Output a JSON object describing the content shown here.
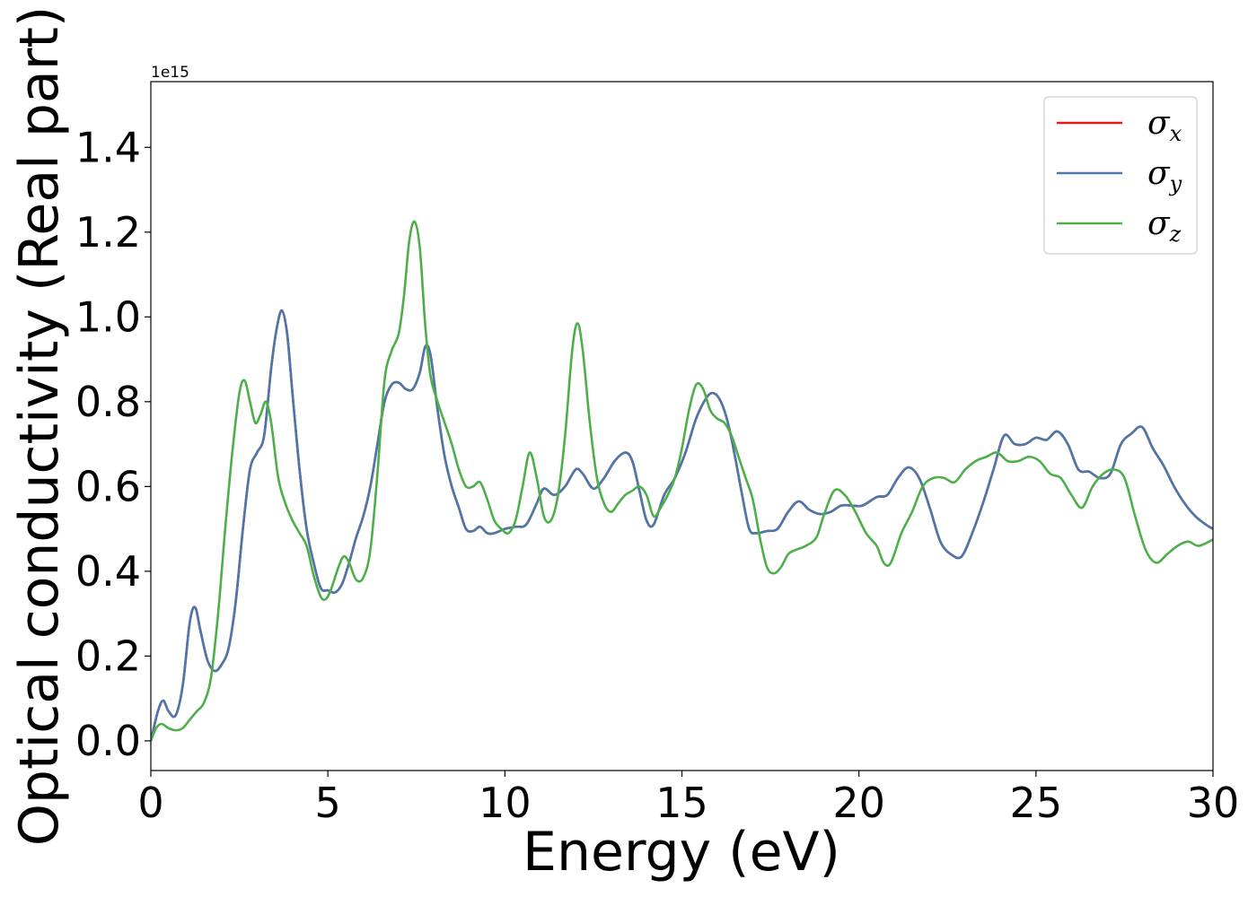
{
  "chart_data": {
    "type": "line",
    "xlabel": "Energy (eV)",
    "ylabel": "Optical conductivity (Real part)",
    "y_offset_label": "1e15",
    "xlim": [
      0,
      30
    ],
    "ylim": [
      -0.07,
      1.555
    ],
    "xticks": [
      0,
      5,
      10,
      15,
      20,
      25,
      30
    ],
    "xtick_labels": [
      "0",
      "5",
      "10",
      "15",
      "20",
      "25",
      "30"
    ],
    "yticks": [
      0.0,
      0.2,
      0.4,
      0.6,
      0.8,
      1.0,
      1.2,
      1.4
    ],
    "ytick_labels": [
      "0.0",
      "0.2",
      "0.4",
      "0.6",
      "0.8",
      "1.0",
      "1.2",
      "1.4"
    ],
    "grid": false,
    "legend_position": "top-right",
    "series": [
      {
        "name": "σx",
        "symbol": "σ",
        "sub": "x",
        "color": "#e41a1c",
        "x": [
          0,
          0.2,
          0.35,
          0.5,
          0.7,
          0.9,
          1.1,
          1.25,
          1.4,
          1.6,
          1.8,
          2.0,
          2.2,
          2.4,
          2.6,
          2.8,
          3.0,
          3.2,
          3.4,
          3.55,
          3.7,
          3.85,
          4.0,
          4.2,
          4.4,
          4.6,
          4.8,
          5.0,
          5.2,
          5.4,
          5.6,
          5.8,
          6.0,
          6.2,
          6.4,
          6.6,
          6.8,
          7.0,
          7.2,
          7.4,
          7.6,
          7.75,
          7.9,
          8.1,
          8.3,
          8.5,
          8.7,
          8.9,
          9.1,
          9.3,
          9.5,
          9.7,
          10.0,
          10.3,
          10.6,
          10.9,
          11.1,
          11.4,
          11.7,
          12.0,
          12.2,
          12.5,
          12.8,
          13.1,
          13.4,
          13.6,
          13.8,
          14.0,
          14.2,
          14.5,
          14.8,
          15.1,
          15.4,
          15.7,
          15.9,
          16.1,
          16.3,
          16.5,
          16.7,
          16.9,
          17.1,
          17.4,
          17.7,
          18.0,
          18.3,
          18.6,
          18.9,
          19.2,
          19.5,
          19.8,
          20.1,
          20.5,
          20.8,
          21.1,
          21.4,
          21.7,
          22.0,
          22.3,
          22.6,
          22.9,
          23.2,
          23.5,
          23.8,
          24.1,
          24.4,
          24.7,
          25.0,
          25.3,
          25.6,
          25.9,
          26.2,
          26.5,
          26.8,
          27.1,
          27.4,
          27.7,
          28.0,
          28.3,
          28.6,
          28.9,
          29.2,
          29.5,
          29.8,
          30.0
        ],
        "y": [
          0.0,
          0.07,
          0.095,
          0.07,
          0.06,
          0.13,
          0.28,
          0.315,
          0.26,
          0.19,
          0.165,
          0.18,
          0.22,
          0.33,
          0.5,
          0.64,
          0.68,
          0.72,
          0.88,
          0.97,
          1.015,
          0.96,
          0.82,
          0.64,
          0.5,
          0.42,
          0.36,
          0.355,
          0.35,
          0.37,
          0.42,
          0.48,
          0.53,
          0.6,
          0.7,
          0.8,
          0.84,
          0.845,
          0.83,
          0.83,
          0.87,
          0.93,
          0.91,
          0.78,
          0.67,
          0.6,
          0.55,
          0.5,
          0.495,
          0.505,
          0.49,
          0.49,
          0.5,
          0.505,
          0.51,
          0.56,
          0.595,
          0.58,
          0.6,
          0.64,
          0.63,
          0.595,
          0.62,
          0.66,
          0.68,
          0.66,
          0.59,
          0.52,
          0.51,
          0.58,
          0.62,
          0.68,
          0.76,
          0.81,
          0.82,
          0.8,
          0.75,
          0.67,
          0.58,
          0.5,
          0.49,
          0.495,
          0.5,
          0.54,
          0.565,
          0.545,
          0.535,
          0.54,
          0.555,
          0.555,
          0.555,
          0.575,
          0.58,
          0.62,
          0.645,
          0.62,
          0.55,
          0.47,
          0.44,
          0.435,
          0.49,
          0.56,
          0.64,
          0.72,
          0.7,
          0.7,
          0.715,
          0.71,
          0.73,
          0.7,
          0.64,
          0.635,
          0.62,
          0.63,
          0.7,
          0.725,
          0.74,
          0.69,
          0.65,
          0.6,
          0.56,
          0.53,
          0.51,
          0.5
        ]
      },
      {
        "name": "σy",
        "symbol": "σ",
        "sub": "y",
        "color": "#4a78aa",
        "x": [
          0,
          0.2,
          0.35,
          0.5,
          0.7,
          0.9,
          1.1,
          1.25,
          1.4,
          1.6,
          1.8,
          2.0,
          2.2,
          2.4,
          2.6,
          2.8,
          3.0,
          3.2,
          3.4,
          3.55,
          3.7,
          3.85,
          4.0,
          4.2,
          4.4,
          4.6,
          4.8,
          5.0,
          5.2,
          5.4,
          5.6,
          5.8,
          6.0,
          6.2,
          6.4,
          6.6,
          6.8,
          7.0,
          7.2,
          7.4,
          7.6,
          7.75,
          7.9,
          8.1,
          8.3,
          8.5,
          8.7,
          8.9,
          9.1,
          9.3,
          9.5,
          9.7,
          10.0,
          10.3,
          10.6,
          10.9,
          11.1,
          11.4,
          11.7,
          12.0,
          12.2,
          12.5,
          12.8,
          13.1,
          13.4,
          13.6,
          13.8,
          14.0,
          14.2,
          14.5,
          14.8,
          15.1,
          15.4,
          15.7,
          15.9,
          16.1,
          16.3,
          16.5,
          16.7,
          16.9,
          17.1,
          17.4,
          17.7,
          18.0,
          18.3,
          18.6,
          18.9,
          19.2,
          19.5,
          19.8,
          20.1,
          20.5,
          20.8,
          21.1,
          21.4,
          21.7,
          22.0,
          22.3,
          22.6,
          22.9,
          23.2,
          23.5,
          23.8,
          24.1,
          24.4,
          24.7,
          25.0,
          25.3,
          25.6,
          25.9,
          26.2,
          26.5,
          26.8,
          27.1,
          27.4,
          27.7,
          28.0,
          28.3,
          28.6,
          28.9,
          29.2,
          29.5,
          29.8,
          30.0
        ],
        "y": [
          0.0,
          0.07,
          0.095,
          0.07,
          0.06,
          0.13,
          0.28,
          0.315,
          0.26,
          0.19,
          0.165,
          0.18,
          0.22,
          0.33,
          0.5,
          0.64,
          0.68,
          0.72,
          0.88,
          0.97,
          1.015,
          0.96,
          0.82,
          0.64,
          0.5,
          0.42,
          0.36,
          0.355,
          0.35,
          0.37,
          0.42,
          0.48,
          0.53,
          0.6,
          0.7,
          0.8,
          0.84,
          0.845,
          0.83,
          0.83,
          0.87,
          0.93,
          0.91,
          0.78,
          0.67,
          0.6,
          0.55,
          0.5,
          0.495,
          0.505,
          0.49,
          0.49,
          0.5,
          0.505,
          0.51,
          0.56,
          0.595,
          0.58,
          0.6,
          0.64,
          0.63,
          0.595,
          0.62,
          0.66,
          0.68,
          0.66,
          0.59,
          0.52,
          0.51,
          0.58,
          0.62,
          0.68,
          0.76,
          0.81,
          0.82,
          0.8,
          0.75,
          0.67,
          0.58,
          0.5,
          0.49,
          0.495,
          0.5,
          0.54,
          0.565,
          0.545,
          0.535,
          0.54,
          0.555,
          0.555,
          0.555,
          0.575,
          0.58,
          0.62,
          0.645,
          0.62,
          0.55,
          0.47,
          0.44,
          0.435,
          0.49,
          0.56,
          0.64,
          0.72,
          0.7,
          0.7,
          0.715,
          0.71,
          0.73,
          0.7,
          0.64,
          0.635,
          0.62,
          0.63,
          0.7,
          0.725,
          0.74,
          0.69,
          0.65,
          0.6,
          0.56,
          0.53,
          0.51,
          0.5
        ]
      },
      {
        "name": "σz",
        "symbol": "σ",
        "sub": "z",
        "color": "#4daf4a",
        "x": [
          0,
          0.15,
          0.3,
          0.5,
          0.7,
          0.9,
          1.1,
          1.3,
          1.5,
          1.7,
          1.9,
          2.1,
          2.3,
          2.5,
          2.65,
          2.8,
          2.95,
          3.1,
          3.25,
          3.4,
          3.6,
          3.8,
          4.0,
          4.2,
          4.4,
          4.6,
          4.8,
          4.95,
          5.1,
          5.3,
          5.45,
          5.6,
          5.8,
          6.0,
          6.2,
          6.4,
          6.6,
          6.8,
          7.0,
          7.15,
          7.3,
          7.45,
          7.6,
          7.75,
          7.9,
          8.1,
          8.3,
          8.5,
          8.7,
          8.9,
          9.1,
          9.3,
          9.5,
          9.7,
          9.9,
          10.1,
          10.3,
          10.5,
          10.7,
          10.9,
          11.1,
          11.3,
          11.5,
          11.7,
          11.9,
          12.05,
          12.2,
          12.4,
          12.6,
          12.8,
          13.0,
          13.2,
          13.4,
          13.6,
          13.8,
          14.0,
          14.2,
          14.4,
          14.6,
          14.8,
          15.0,
          15.2,
          15.4,
          15.6,
          15.8,
          16.0,
          16.2,
          16.4,
          16.6,
          16.8,
          17.0,
          17.2,
          17.4,
          17.6,
          17.8,
          18.0,
          18.2,
          18.5,
          18.8,
          19.0,
          19.3,
          19.6,
          19.9,
          20.2,
          20.5,
          20.7,
          20.9,
          21.2,
          21.5,
          21.8,
          22.1,
          22.4,
          22.7,
          23.0,
          23.3,
          23.6,
          23.9,
          24.2,
          24.5,
          24.8,
          25.1,
          25.4,
          25.7,
          26.0,
          26.3,
          26.6,
          26.9,
          27.2,
          27.5,
          27.8,
          28.1,
          28.4,
          28.7,
          29.0,
          29.3,
          29.6,
          30.0
        ],
        "y": [
          0.0,
          0.03,
          0.04,
          0.03,
          0.025,
          0.03,
          0.05,
          0.07,
          0.09,
          0.15,
          0.3,
          0.5,
          0.68,
          0.82,
          0.85,
          0.8,
          0.75,
          0.77,
          0.8,
          0.75,
          0.62,
          0.56,
          0.52,
          0.49,
          0.46,
          0.39,
          0.34,
          0.335,
          0.36,
          0.41,
          0.435,
          0.42,
          0.38,
          0.385,
          0.45,
          0.63,
          0.85,
          0.92,
          0.96,
          1.05,
          1.18,
          1.225,
          1.16,
          0.98,
          0.86,
          0.8,
          0.75,
          0.7,
          0.64,
          0.6,
          0.6,
          0.61,
          0.57,
          0.52,
          0.5,
          0.49,
          0.52,
          0.6,
          0.68,
          0.62,
          0.53,
          0.52,
          0.58,
          0.72,
          0.92,
          0.985,
          0.92,
          0.75,
          0.62,
          0.56,
          0.54,
          0.56,
          0.58,
          0.59,
          0.6,
          0.58,
          0.53,
          0.55,
          0.58,
          0.62,
          0.69,
          0.78,
          0.84,
          0.83,
          0.78,
          0.76,
          0.75,
          0.72,
          0.67,
          0.62,
          0.57,
          0.48,
          0.41,
          0.395,
          0.41,
          0.44,
          0.45,
          0.46,
          0.48,
          0.53,
          0.59,
          0.58,
          0.54,
          0.49,
          0.46,
          0.42,
          0.42,
          0.49,
          0.54,
          0.6,
          0.62,
          0.62,
          0.61,
          0.64,
          0.66,
          0.67,
          0.68,
          0.66,
          0.66,
          0.67,
          0.66,
          0.63,
          0.62,
          0.58,
          0.55,
          0.6,
          0.63,
          0.64,
          0.62,
          0.53,
          0.45,
          0.42,
          0.44,
          0.46,
          0.47,
          0.46,
          0.475
        ]
      }
    ]
  }
}
